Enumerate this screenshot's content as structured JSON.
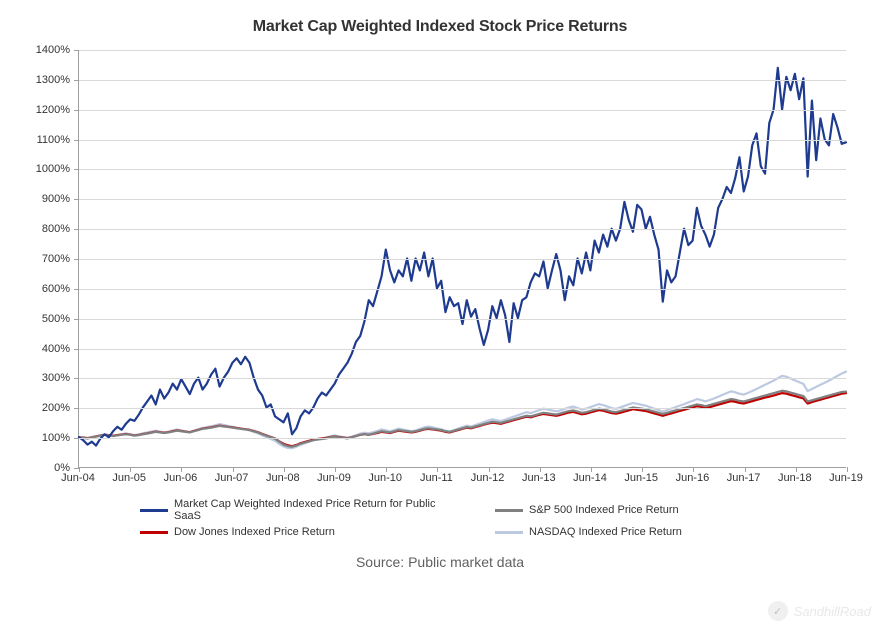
{
  "chart": {
    "type": "line",
    "title": "Market Cap Weighted Indexed Stock Price Returns",
    "title_fontsize": 16,
    "title_weight": "bold",
    "title_color": "#333333",
    "background_color": "#ffffff",
    "grid_color": "#d9d9d9",
    "axis_color": "#a0a0a0",
    "tick_fontsize": 11,
    "tick_color": "#333333",
    "y_axis": {
      "min": 0,
      "max": 1400,
      "tick_step": 100,
      "tick_suffix": "%"
    },
    "x_axis": {
      "labels": [
        "Jun-04",
        "Jun-05",
        "Jun-06",
        "Jun-07",
        "Jun-08",
        "Jun-09",
        "Jun-10",
        "Jun-11",
        "Jun-12",
        "Jun-13",
        "Jun-14",
        "Jun-15",
        "Jun-16",
        "Jun-17",
        "Jun-18",
        "Jun-19"
      ],
      "min_index": 0,
      "max_index": 180
    },
    "series": [
      {
        "name": "Market Cap Weighted Indexed Price Return for Public SaaS",
        "color": "#1f3b8f",
        "width": 2.2,
        "data": [
          100,
          90,
          75,
          85,
          72,
          95,
          110,
          100,
          120,
          135,
          125,
          145,
          160,
          155,
          175,
          200,
          220,
          240,
          210,
          260,
          230,
          250,
          280,
          260,
          295,
          270,
          245,
          280,
          300,
          260,
          280,
          310,
          330,
          270,
          300,
          320,
          350,
          365,
          345,
          370,
          350,
          300,
          260,
          240,
          200,
          210,
          170,
          160,
          150,
          180,
          110,
          130,
          170,
          190,
          180,
          200,
          230,
          250,
          240,
          260,
          280,
          310,
          330,
          350,
          380,
          420,
          440,
          490,
          560,
          540,
          590,
          640,
          730,
          660,
          620,
          660,
          640,
          700,
          625,
          700,
          660,
          720,
          640,
          700,
          600,
          625,
          520,
          570,
          540,
          550,
          480,
          560,
          505,
          530,
          465,
          410,
          460,
          540,
          500,
          560,
          510,
          420,
          550,
          500,
          560,
          570,
          620,
          650,
          640,
          690,
          600,
          660,
          715,
          660,
          560,
          640,
          610,
          700,
          650,
          720,
          660,
          760,
          720,
          780,
          740,
          800,
          760,
          800,
          890,
          830,
          790,
          880,
          865,
          800,
          840,
          780,
          730,
          555,
          660,
          620,
          640,
          720,
          800,
          745,
          760,
          870,
          810,
          780,
          740,
          780,
          870,
          900,
          940,
          920,
          970,
          1040,
          925,
          975,
          1080,
          1120,
          1010,
          985,
          1155,
          1200,
          1340,
          1200,
          1310,
          1265,
          1320,
          1235,
          1305,
          975,
          1230,
          1030,
          1170,
          1100,
          1080,
          1185,
          1140,
          1085,
          1090
        ]
      },
      {
        "name": "S&P 500 Indexed Price Return",
        "color": "#808080",
        "width": 2.2,
        "data": [
          100,
          98,
          96,
          100,
          102,
          105,
          108,
          106,
          104,
          106,
          108,
          110,
          108,
          105,
          107,
          110,
          112,
          115,
          118,
          116,
          114,
          116,
          119,
          122,
          120,
          118,
          116,
          120,
          124,
          128,
          130,
          132,
          135,
          138,
          136,
          134,
          132,
          130,
          128,
          126,
          124,
          120,
          116,
          110,
          105,
          100,
          95,
          85,
          75,
          70,
          68,
          72,
          78,
          82,
          86,
          90,
          92,
          94,
          96,
          100,
          102,
          100,
          98,
          96,
          100,
          104,
          108,
          110,
          108,
          112,
          116,
          120,
          118,
          116,
          120,
          124,
          122,
          120,
          118,
          120,
          124,
          128,
          130,
          128,
          126,
          124,
          120,
          118,
          122,
          126,
          130,
          134,
          132,
          136,
          140,
          144,
          148,
          152,
          150,
          148,
          152,
          156,
          160,
          164,
          168,
          172,
          170,
          174,
          178,
          182,
          180,
          178,
          176,
          180,
          184,
          188,
          190,
          186,
          182,
          184,
          188,
          192,
          196,
          194,
          190,
          186,
          184,
          188,
          192,
          196,
          200,
          198,
          196,
          194,
          190,
          186,
          182,
          178,
          182,
          186,
          190,
          194,
          198,
          202,
          206,
          210,
          208,
          204,
          208,
          212,
          216,
          220,
          224,
          228,
          226,
          222,
          220,
          224,
          228,
          232,
          236,
          240,
          244,
          248,
          252,
          256,
          254,
          250,
          246,
          242,
          238,
          220,
          224,
          228,
          232,
          236,
          240,
          244,
          248,
          252,
          253
        ]
      },
      {
        "name": "Dow Jones Indexed Price Return",
        "color": "#c00000",
        "width": 2.2,
        "data": [
          100,
          99,
          97,
          100,
          103,
          106,
          108,
          107,
          105,
          107,
          109,
          111,
          109,
          106,
          108,
          111,
          113,
          116,
          119,
          117,
          115,
          117,
          120,
          123,
          121,
          119,
          117,
          121,
          125,
          129,
          131,
          133,
          136,
          139,
          137,
          135,
          133,
          131,
          129,
          127,
          125,
          121,
          117,
          111,
          106,
          101,
          96,
          86,
          78,
          73,
          70,
          74,
          80,
          84,
          88,
          92,
          94,
          96,
          98,
          101,
          103,
          101,
          99,
          97,
          100,
          104,
          108,
          110,
          108,
          111,
          114,
          118,
          116,
          114,
          118,
          122,
          120,
          118,
          116,
          118,
          122,
          126,
          128,
          126,
          124,
          122,
          118,
          116,
          120,
          124,
          128,
          132,
          130,
          134,
          138,
          142,
          146,
          149,
          147,
          145,
          149,
          153,
          157,
          161,
          165,
          169,
          167,
          171,
          175,
          178,
          176,
          174,
          172,
          175,
          179,
          183,
          185,
          181,
          177,
          179,
          183,
          187,
          191,
          189,
          185,
          181,
          179,
          182,
          186,
          190,
          194,
          192,
          190,
          188,
          184,
          180,
          176,
          172,
          176,
          180,
          184,
          188,
          192,
          196,
          200,
          204,
          202,
          198,
          201,
          205,
          209,
          213,
          217,
          221,
          219,
          215,
          213,
          217,
          221,
          225,
          229,
          233,
          236,
          240,
          244,
          248,
          246,
          242,
          238,
          234,
          230,
          213,
          218,
          222,
          226,
          230,
          234,
          238,
          242,
          246,
          248
        ]
      },
      {
        "name": "NASDAQ Indexed Price Return",
        "color": "#bcc9e0",
        "width": 2.2,
        "data": [
          100,
          97,
          95,
          99,
          102,
          106,
          109,
          107,
          104,
          107,
          110,
          113,
          110,
          107,
          109,
          113,
          116,
          119,
          122,
          119,
          116,
          119,
          123,
          126,
          123,
          120,
          117,
          122,
          127,
          131,
          134,
          137,
          140,
          144,
          141,
          138,
          135,
          132,
          129,
          126,
          123,
          118,
          113,
          106,
          100,
          94,
          88,
          77,
          69,
          64,
          63,
          68,
          75,
          80,
          85,
          90,
          93,
          96,
          99,
          103,
          106,
          103,
          100,
          98,
          102,
          107,
          112,
          115,
          113,
          117,
          121,
          126,
          123,
          120,
          124,
          129,
          126,
          123,
          120,
          123,
          128,
          133,
          136,
          133,
          130,
          127,
          122,
          119,
          124,
          129,
          134,
          139,
          136,
          141,
          146,
          151,
          156,
          160,
          157,
          154,
          159,
          164,
          169,
          174,
          179,
          184,
          181,
          186,
          191,
          196,
          193,
          190,
          187,
          190,
          195,
          200,
          203,
          198,
          193,
          196,
          201,
          206,
          211,
          208,
          203,
          198,
          195,
          200,
          205,
          210,
          215,
          212,
          209,
          206,
          201,
          196,
          191,
          186,
          191,
          196,
          201,
          206,
          211,
          217,
          222,
          228,
          225,
          220,
          225,
          230,
          236,
          242,
          248,
          254,
          251,
          246,
          243,
          249,
          255,
          262,
          269,
          276,
          283,
          290,
          298,
          306,
          303,
          297,
          291,
          285,
          279,
          255,
          262,
          269,
          276,
          283,
          290,
          298,
          306,
          314,
          320
        ]
      }
    ],
    "legend": {
      "fontsize": 11,
      "color": "#333333",
      "swatch_width": 28,
      "swatch_thickness": 3
    },
    "source_text": "Source: Public market data",
    "source_fontsize": 14,
    "source_color": "#606060",
    "watermark": {
      "text": "SandhillRoad",
      "icon_glyph": "✓",
      "color": "#e8e8e8"
    }
  }
}
